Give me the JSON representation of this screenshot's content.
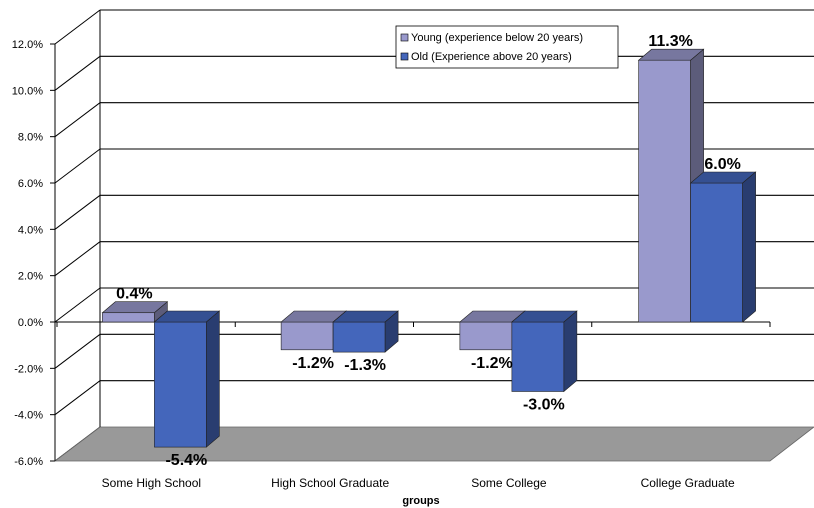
{
  "chart_data": {
    "type": "bar",
    "title": "",
    "xlabel": "groups",
    "ylabel": "",
    "categories": [
      "Some High School",
      "High School Graduate",
      "Some College",
      "College Graduate"
    ],
    "series": [
      {
        "name": "Young (experience below 20 years)",
        "values": [
          0.4,
          -1.2,
          -1.2,
          11.3
        ],
        "labels": [
          "0.4%",
          "-1.2%",
          "-1.2%",
          "11.3%"
        ],
        "color": "#9999cc"
      },
      {
        "name": "Old (Experience above 20 years)",
        "values": [
          -5.4,
          -1.3,
          -3.0,
          6.0
        ],
        "labels": [
          "-5.4%",
          "-1.3%",
          "-3.0%",
          "6.0%"
        ],
        "color": "#4466bb"
      }
    ],
    "y_ticks": [
      -6,
      -4,
      -2,
      0,
      2,
      4,
      6,
      8,
      10,
      12
    ],
    "y_tick_labels": [
      "-6.0%",
      "-4.0%",
      "-2.0%",
      "0.0%",
      "2.0%",
      "4.0%",
      "6.0%",
      "8.0%",
      "10.0%",
      "12.0%"
    ],
    "ylim": [
      -6,
      12
    ],
    "grid": true,
    "legend_position": "top-right",
    "floor_color": "#999999"
  }
}
